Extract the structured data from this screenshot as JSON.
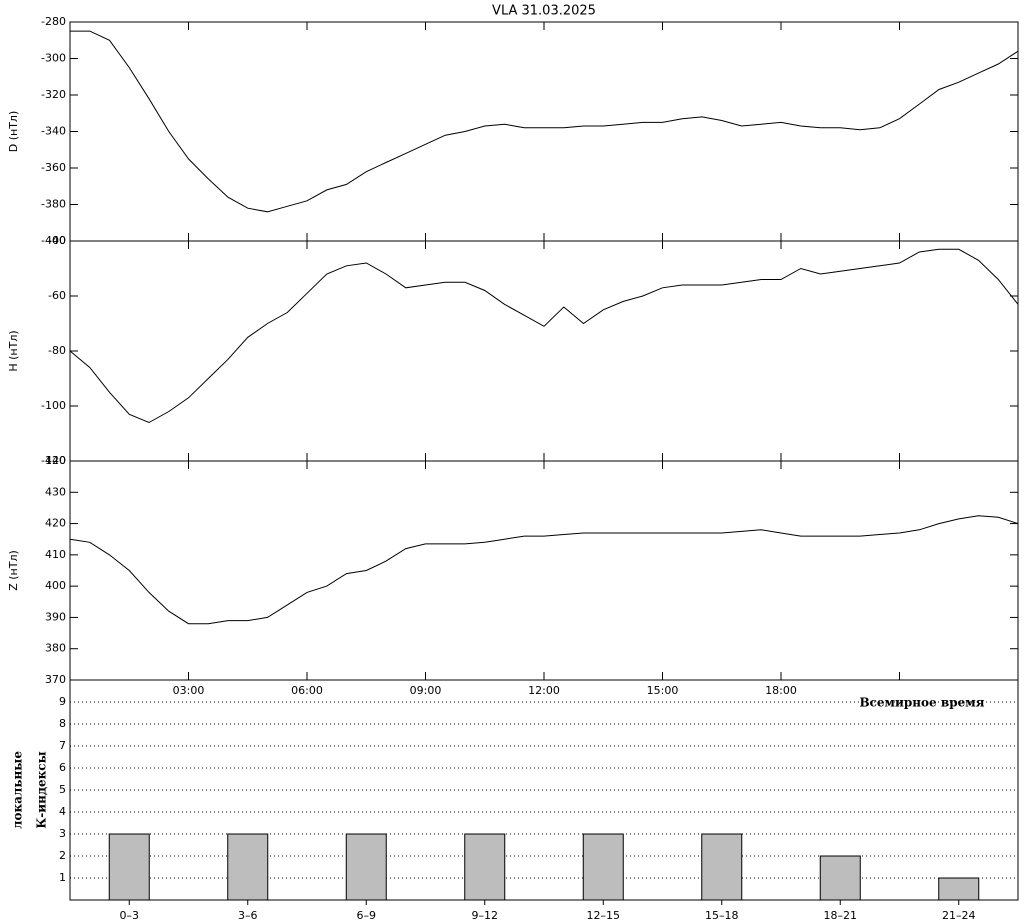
{
  "chart_data": [
    {
      "type": "line",
      "title": "VLA   31.03.2025",
      "ylabel": "D (нТл)",
      "color": "#000000",
      "xlim": [
        0,
        24
      ],
      "ylim": [
        -400,
        -280
      ],
      "yticks": [
        -400,
        -380,
        -360,
        -340,
        -320,
        -300,
        -280
      ],
      "x": [
        0,
        0.5,
        1,
        1.5,
        2,
        2.5,
        3,
        3.5,
        4,
        4.5,
        5,
        5.5,
        6,
        6.5,
        7,
        7.5,
        8,
        8.5,
        9,
        9.5,
        10,
        10.5,
        11,
        11.5,
        12,
        12.5,
        13,
        13.5,
        14,
        14.5,
        15,
        15.5,
        16,
        16.5,
        17,
        17.5,
        18,
        18.5,
        19,
        19.5,
        20,
        20.5,
        21,
        21.5,
        22,
        22.5,
        23,
        23.5,
        24
      ],
      "values": [
        -285,
        -285,
        -290,
        -305,
        -322,
        -340,
        -355,
        -366,
        -376,
        -382,
        -384,
        -381,
        -378,
        -372,
        -369,
        -362,
        -357,
        -352,
        -347,
        -342,
        -340,
        -337,
        -336,
        -338,
        -338,
        -338,
        -337,
        -337,
        -336,
        -335,
        -335,
        -333,
        -332,
        -334,
        -337,
        -336,
        -335,
        -337,
        -338,
        -338,
        -339,
        -338,
        -333,
        -325,
        -317,
        -313,
        -308,
        -303,
        -296
      ]
    },
    {
      "type": "line",
      "ylabel": "H (нТл)",
      "color": "#000000",
      "xlim": [
        0,
        24
      ],
      "ylim": [
        -120,
        -40
      ],
      "yticks": [
        -120,
        -100,
        -80,
        -60,
        -40
      ],
      "x": [
        0,
        0.5,
        1,
        1.5,
        2,
        2.5,
        3,
        3.5,
        4,
        4.5,
        5,
        5.5,
        6,
        6.5,
        7,
        7.5,
        8,
        8.5,
        9,
        9.5,
        10,
        10.5,
        11,
        11.5,
        12,
        12.5,
        13,
        13.5,
        14,
        14.5,
        15,
        15.5,
        16,
        16.5,
        17,
        17.5,
        18,
        18.5,
        19,
        19.5,
        20,
        20.5,
        21,
        21.5,
        22,
        22.5,
        23,
        23.5,
        24
      ],
      "values": [
        -80,
        -86,
        -95,
        -103,
        -106,
        -102,
        -97,
        -90,
        -83,
        -75,
        -70,
        -66,
        -59,
        -52,
        -49,
        -48,
        -52,
        -57,
        -56,
        -55,
        -55,
        -58,
        -63,
        -67,
        -71,
        -64,
        -70,
        -65,
        -62,
        -60,
        -57,
        -56,
        -56,
        -56,
        -55,
        -54,
        -54,
        -50,
        -52,
        -51,
        -50,
        -49,
        -48,
        -44,
        -43,
        -43,
        -47,
        -54,
        -63
      ]
    },
    {
      "type": "line",
      "ylabel": "Z (нТл)",
      "xlabel": "Всемирное время",
      "color": "#000000",
      "xlim": [
        0,
        24
      ],
      "ylim": [
        370,
        440
      ],
      "yticks": [
        370,
        380,
        390,
        400,
        410,
        420,
        430,
        440
      ],
      "xticks": [
        {
          "value": 3,
          "label": "03:00"
        },
        {
          "value": 6,
          "label": "06:00"
        },
        {
          "value": 9,
          "label": "09:00"
        },
        {
          "value": 12,
          "label": "12:00"
        },
        {
          "value": 15,
          "label": "15:00"
        },
        {
          "value": 18,
          "label": "18:00"
        },
        {
          "value": 21,
          "label": ""
        }
      ],
      "x": [
        0,
        0.5,
        1,
        1.5,
        2,
        2.5,
        3,
        3.5,
        4,
        4.5,
        5,
        5.5,
        6,
        6.5,
        7,
        7.5,
        8,
        8.5,
        9,
        9.5,
        10,
        10.5,
        11,
        11.5,
        12,
        12.5,
        13,
        13.5,
        14,
        14.5,
        15,
        15.5,
        16,
        16.5,
        17,
        17.5,
        18,
        18.5,
        19,
        19.5,
        20,
        20.5,
        21,
        21.5,
        22,
        22.5,
        23,
        23.5,
        24
      ],
      "values": [
        415,
        414,
        410,
        405,
        398,
        392,
        388,
        388,
        389,
        389,
        390,
        394,
        398,
        400,
        404,
        405,
        408,
        412,
        413.5,
        413.5,
        413.5,
        414,
        415,
        416,
        416,
        416.5,
        417,
        417,
        417,
        417,
        417,
        417,
        417,
        417,
        417.5,
        418,
        417,
        416,
        416,
        416,
        416,
        416.5,
        417,
        418,
        420,
        421.5,
        422.5,
        422,
        420
      ]
    },
    {
      "type": "bar",
      "ylabel": [
        "локальные",
        "К-индексы"
      ],
      "color": "#bdbdbd",
      "grid": true,
      "categories": [
        "0–3",
        "3–6",
        "6–9",
        "9–12",
        "12–15",
        "15–18",
        "18–21",
        "21–24"
      ],
      "values": [
        3,
        3,
        3,
        3,
        3,
        3,
        2,
        1
      ],
      "ylim": [
        0,
        10
      ],
      "yticks": [
        1,
        2,
        3,
        4,
        5,
        6,
        7,
        8,
        9
      ]
    }
  ]
}
